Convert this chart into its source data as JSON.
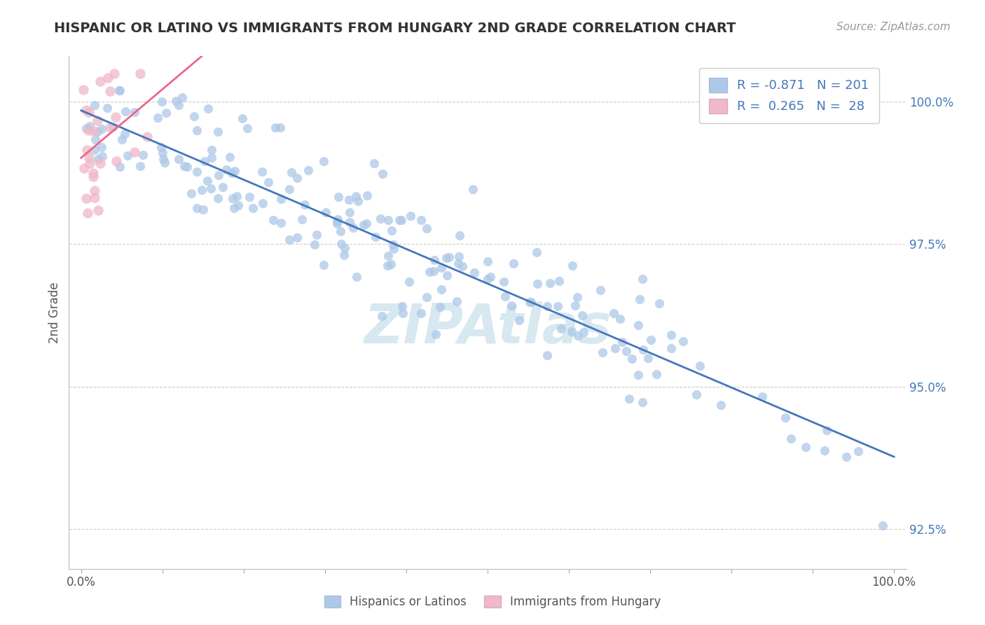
{
  "title": "HISPANIC OR LATINO VS IMMIGRANTS FROM HUNGARY 2ND GRADE CORRELATION CHART",
  "source": "Source: ZipAtlas.com",
  "ylabel": "2nd Grade",
  "color_blue": "#adc8e8",
  "color_pink": "#f0b8c8",
  "line_blue": "#4477bb",
  "line_pink": "#ee6688",
  "title_color": "#333333",
  "source_color": "#999999",
  "watermark": "ZIPAtlas",
  "grid_color": "#cccccc",
  "background_color": "#ffffff",
  "ytick_color": "#4477bb",
  "xtick_color": "#555555",
  "legend_label_color": "#4477bb"
}
